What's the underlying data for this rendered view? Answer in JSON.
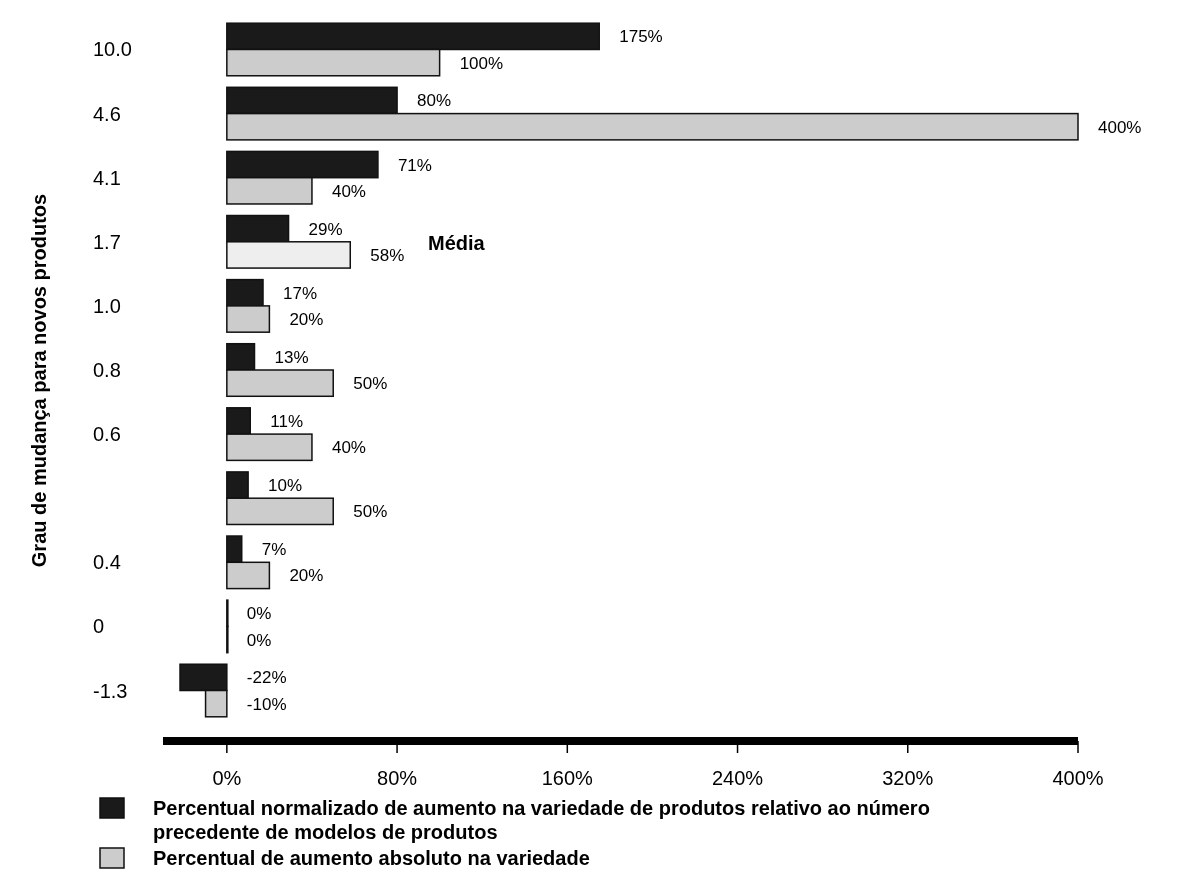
{
  "chart_data": {
    "type": "bar",
    "orientation": "horizontal",
    "ylabel": "Grau de mudança para novos produtos",
    "categories": [
      "10.0",
      "4.6",
      "4.1",
      "1.7",
      "1.0",
      "0.8",
      "0.6",
      null,
      "0.4",
      "0",
      "-1.3"
    ],
    "series": [
      {
        "name": "Percentual normalizado de aumento na variedade de produtos relativo ao número precedente de modelos de produtos",
        "color": "#1a1a1a",
        "values": [
          175,
          80,
          71,
          29,
          17,
          13,
          11,
          10,
          7,
          0,
          -22
        ],
        "value_labels": [
          "175%",
          "80%",
          "71%",
          "29%",
          "17%",
          "13%",
          "11%",
          "10%",
          "7%",
          "0%",
          "-22%"
        ]
      },
      {
        "name": "Percentual de aumento absoluto na variedade",
        "color": "#cccccc",
        "colors": [
          "#cccccc",
          "#cccccc",
          "#cccccc",
          "#eeeeee",
          "#cccccc",
          "#cccccc",
          "#cccccc",
          "#cccccc",
          "#cccccc",
          "#cccccc",
          "#cccccc"
        ],
        "values": [
          100,
          400,
          40,
          58,
          20,
          50,
          40,
          50,
          20,
          0,
          -10
        ],
        "value_labels": [
          "100%",
          "400%",
          "40%",
          "58%",
          "20%",
          "50%",
          "40%",
          "50%",
          "20%",
          "0%",
          "-10%"
        ]
      }
    ],
    "xlim": [
      -30,
      400
    ],
    "xticks": [
      {
        "value": 0,
        "label": "0%"
      },
      {
        "value": 80,
        "label": "80%"
      },
      {
        "value": 160,
        "label": "160%"
      },
      {
        "value": 240,
        "label": "240%"
      },
      {
        "value": 320,
        "label": "320%"
      },
      {
        "value": 400,
        "label": "400%"
      }
    ],
    "legend": "bottom",
    "grid": false,
    "annotations": [
      "Média"
    ]
  }
}
